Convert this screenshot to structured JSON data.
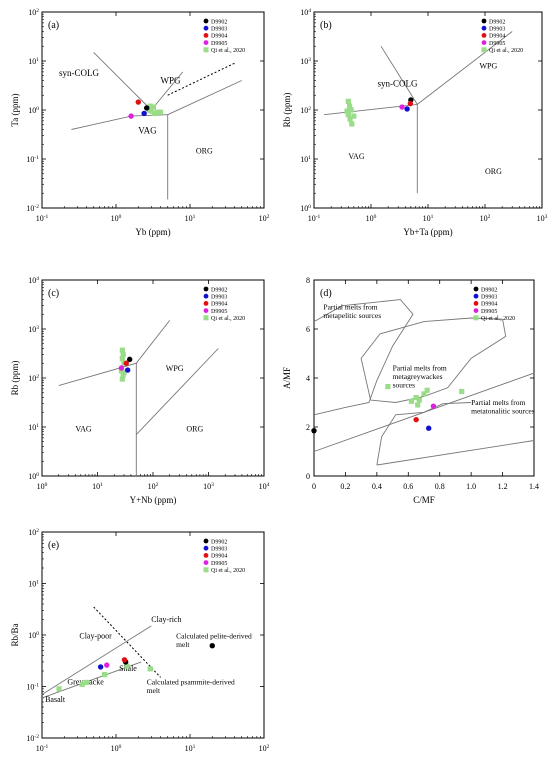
{
  "legend": {
    "entries": [
      {
        "label": "D9902",
        "color": "#000000",
        "marker": "circle"
      },
      {
        "label": "D9903",
        "color": "#1010d0",
        "marker": "circle"
      },
      {
        "label": "D9904",
        "color": "#e01010",
        "marker": "circle"
      },
      {
        "label": "D9905",
        "color": "#e020e0",
        "marker": "circle"
      },
      {
        "label": "Qi et al., 2020",
        "color": "#99dd88",
        "marker": "square"
      }
    ]
  },
  "chart_data": [
    {
      "panel": "(a)",
      "type": "scatter",
      "xlabel": "Yb (ppm)",
      "ylabel": "Ta (ppm)",
      "xscale": "log",
      "yscale": "log",
      "xlim": [
        0.1,
        100
      ],
      "ylim": [
        0.01,
        100
      ],
      "xticks": [
        0.1,
        1,
        10,
        100
      ],
      "yticks": [
        0.01,
        0.1,
        1,
        10,
        100
      ],
      "legend_placement": "top-right",
      "field_labels": [
        "syn-COLG",
        "WPG",
        "VAG",
        "ORG"
      ],
      "series": [
        {
          "name": "D9902",
          "points": [
            [
              2.6,
              1.1
            ]
          ]
        },
        {
          "name": "D9903",
          "points": [
            [
              2.4,
              0.85
            ]
          ]
        },
        {
          "name": "D9904",
          "points": [
            [
              2.0,
              1.45
            ]
          ]
        },
        {
          "name": "D9905",
          "points": [
            [
              1.6,
              0.75
            ]
          ]
        },
        {
          "name": "Qi et al., 2020",
          "points": [
            [
              2.8,
              1.0
            ],
            [
              3.0,
              0.95
            ],
            [
              3.2,
              1.15
            ],
            [
              3.3,
              0.85
            ],
            [
              3.6,
              0.9
            ],
            [
              2.9,
              1.2
            ],
            [
              4.0,
              0.9
            ]
          ]
        }
      ]
    },
    {
      "panel": "(b)",
      "type": "scatter",
      "xlabel": "Yb+Ta (ppm)",
      "ylabel": "Rb (ppm)",
      "xscale": "log",
      "yscale": "log",
      "xlim": [
        0.1,
        1000
      ],
      "ylim": [
        1,
        10000
      ],
      "xticks": [
        0.1,
        1,
        10,
        100,
        1000
      ],
      "yticks": [
        1,
        10,
        100,
        1000,
        10000
      ],
      "legend_placement": "top-right",
      "field_labels": [
        "syn-COLG",
        "WPG",
        "VAG",
        "ORG"
      ],
      "series": [
        {
          "name": "D9902",
          "points": [
            [
              5.0,
              160
            ]
          ]
        },
        {
          "name": "D9903",
          "points": [
            [
              4.3,
              105
            ]
          ]
        },
        {
          "name": "D9904",
          "points": [
            [
              4.9,
              135
            ]
          ]
        },
        {
          "name": "D9905",
          "points": [
            [
              3.5,
              115
            ]
          ]
        },
        {
          "name": "Qi et al., 2020",
          "points": [
            [
              0.4,
              150
            ],
            [
              0.42,
              120
            ],
            [
              0.45,
              100
            ],
            [
              0.4,
              80
            ],
            [
              0.43,
              65
            ],
            [
              0.46,
              52
            ],
            [
              0.5,
              75
            ],
            [
              0.38,
              95
            ]
          ]
        }
      ]
    },
    {
      "panel": "(c)",
      "type": "scatter",
      "xlabel": "Y+Nb (ppm)",
      "ylabel": "Rb (ppm)",
      "xscale": "log",
      "yscale": "log",
      "xlim": [
        1,
        10000
      ],
      "ylim": [
        1,
        10000
      ],
      "xticks": [
        1,
        10,
        100,
        1000,
        10000
      ],
      "yticks": [
        1,
        10,
        100,
        1000,
        10000
      ],
      "legend_placement": "top-right",
      "field_labels": [
        "WPG",
        "VAG",
        "ORG"
      ],
      "series": [
        {
          "name": "D9902",
          "points": [
            [
              38,
              240
            ]
          ]
        },
        {
          "name": "D9903",
          "points": [
            [
              35,
              145
            ]
          ]
        },
        {
          "name": "D9904",
          "points": [
            [
              33,
              200
            ]
          ]
        },
        {
          "name": "D9905",
          "points": [
            [
              27,
              160
            ]
          ]
        },
        {
          "name": "Qi et al., 2020",
          "points": [
            [
              28,
              370
            ],
            [
              29,
              300
            ],
            [
              28,
              250
            ],
            [
              30,
              200
            ],
            [
              27,
              140
            ],
            [
              29,
              115
            ],
            [
              28,
              95
            ],
            [
              30,
              130
            ]
          ]
        }
      ]
    },
    {
      "panel": "(d)",
      "type": "scatter",
      "xlabel": "C/MF",
      "ylabel": "A/MF",
      "xscale": "linear",
      "yscale": "linear",
      "xlim": [
        0,
        1.4
      ],
      "ylim": [
        0,
        8
      ],
      "xticks": [
        0,
        0.2,
        0.4,
        0.6,
        0.8,
        1.0,
        1.2,
        1.4
      ],
      "yticks": [
        0,
        2,
        4,
        6,
        8
      ],
      "legend_placement": "top-right",
      "field_labels": [
        "Partial melts from metapelitic sources",
        "Partial melts from metagreywackes sources",
        "Partial melts from metatonalitic sources"
      ],
      "series": [
        {
          "name": "D9902",
          "points": [
            [
              0.0,
              1.85
            ]
          ]
        },
        {
          "name": "D9903",
          "points": [
            [
              0.73,
              1.95
            ]
          ]
        },
        {
          "name": "D9904",
          "points": [
            [
              0.65,
              2.3
            ]
          ]
        },
        {
          "name": "D9905",
          "points": [
            [
              0.76,
              2.85
            ]
          ]
        },
        {
          "name": "Qi et al., 2020",
          "points": [
            [
              0.47,
              3.65
            ],
            [
              0.62,
              3.05
            ],
            [
              0.65,
              3.2
            ],
            [
              0.67,
              3.1
            ],
            [
              0.7,
              3.35
            ],
            [
              0.72,
              3.5
            ],
            [
              0.94,
              3.45
            ],
            [
              0.66,
              2.9
            ]
          ]
        }
      ]
    },
    {
      "panel": "(e)",
      "type": "scatter",
      "xlabel": "Rb/Sr",
      "ylabel": "Rb/Ba",
      "xscale": "log",
      "yscale": "log",
      "xlim": [
        0.1,
        100
      ],
      "ylim": [
        0.01,
        100
      ],
      "xticks": [
        0.1,
        1,
        10,
        100
      ],
      "yticks": [
        0.01,
        0.1,
        1,
        10,
        100
      ],
      "legend_placement": "top-right",
      "field_labels": [
        "Clay-rich",
        "Clay-poor",
        "Calculated pelite-derived melt",
        "Shale",
        "Greywacke",
        "Calculated psammite-derived melt",
        "Basalt"
      ],
      "series": [
        {
          "name": "D9902",
          "points": [
            [
              1.35,
              0.3
            ],
            [
              20,
              0.62
            ]
          ]
        },
        {
          "name": "D9903",
          "points": [
            [
              0.62,
              0.24
            ]
          ]
        },
        {
          "name": "D9904",
          "points": [
            [
              1.3,
              0.33
            ]
          ]
        },
        {
          "name": "D9905",
          "points": [
            [
              0.75,
              0.26
            ]
          ]
        },
        {
          "name": "Qi et al., 2020",
          "points": [
            [
              0.17,
              0.09
            ],
            [
              0.35,
              0.11
            ],
            [
              0.4,
              0.12
            ],
            [
              0.7,
              0.17
            ],
            [
              1.4,
              0.25
            ],
            [
              2.9,
              0.22
            ]
          ]
        }
      ]
    }
  ]
}
